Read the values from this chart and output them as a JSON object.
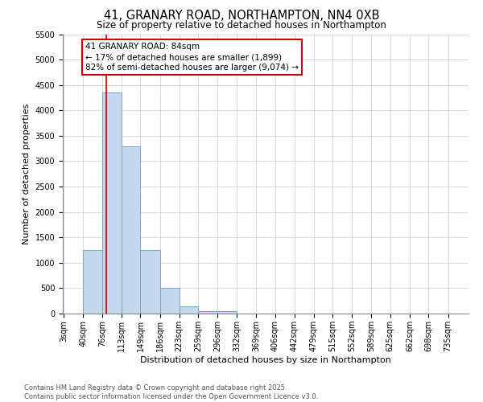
{
  "title_line1": "41, GRANARY ROAD, NORTHAMPTON, NN4 0XB",
  "title_line2": "Size of property relative to detached houses in Northampton",
  "xlabel": "Distribution of detached houses by size in Northampton",
  "ylabel": "Number of detached properties",
  "bin_labels": [
    "3sqm",
    "40sqm",
    "76sqm",
    "113sqm",
    "149sqm",
    "186sqm",
    "223sqm",
    "259sqm",
    "296sqm",
    "332sqm",
    "369sqm",
    "406sqm",
    "442sqm",
    "479sqm",
    "515sqm",
    "552sqm",
    "589sqm",
    "625sqm",
    "662sqm",
    "698sqm",
    "735sqm"
  ],
  "bin_edges": [
    3,
    40,
    76,
    113,
    149,
    186,
    223,
    259,
    296,
    332,
    369,
    406,
    442,
    479,
    515,
    552,
    589,
    625,
    662,
    698,
    735
  ],
  "bar_values": [
    0,
    1250,
    4350,
    3300,
    1250,
    500,
    150,
    50,
    50,
    0,
    0,
    0,
    0,
    0,
    0,
    0,
    0,
    0,
    0,
    0,
    0
  ],
  "bar_color": "#c5d8ee",
  "bar_edge_color": "#6aaad4",
  "property_size": 84,
  "red_line_color": "#cc0000",
  "annotation_text": "41 GRANARY ROAD: 84sqm\n← 17% of detached houses are smaller (1,899)\n82% of semi-detached houses are larger (9,074) →",
  "annotation_box_edge_color": "#cc0000",
  "ylim": [
    0,
    5500
  ],
  "yticks": [
    0,
    500,
    1000,
    1500,
    2000,
    2500,
    3000,
    3500,
    4000,
    4500,
    5000,
    5500
  ],
  "background_color": "#ffffff",
  "grid_color": "#cccccc",
  "footer_line1": "Contains HM Land Registry data © Crown copyright and database right 2025.",
  "footer_line2": "Contains public sector information licensed under the Open Government Licence v3.0."
}
